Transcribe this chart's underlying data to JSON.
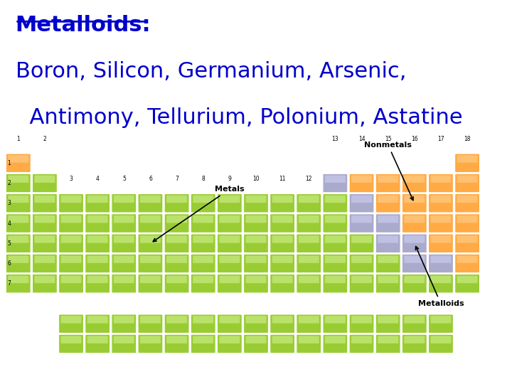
{
  "title_line1": "Metalloids:",
  "title_line2": "Boron, Silicon, Germanium, Arsenic,",
  "title_line3": "  Antimony, Tellurium, Polonium, Astatine",
  "title_color": "#0000CC",
  "bg_color": "#FFFFFF",
  "title_font_size": 22,
  "green_color": "#99CC33",
  "green_light": "#CCEE88",
  "orange_color": "#FFAA44",
  "orange_light": "#FFCC88",
  "purple_color": "#AAAACC",
  "purple_light": "#CCCCEE"
}
